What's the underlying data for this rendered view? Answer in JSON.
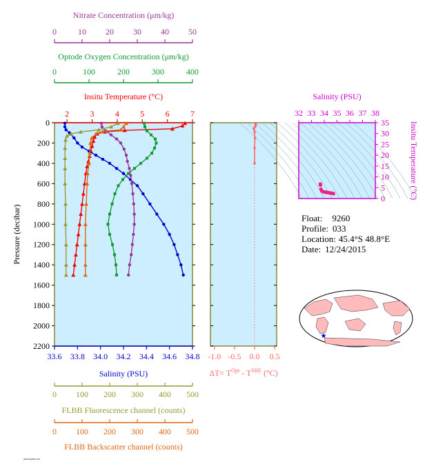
{
  "colors": {
    "nitrate": "#993399",
    "oxygen": "#119933",
    "temperature": "#ee0000",
    "salinity": "#0000cc",
    "fluorescence": "#999933",
    "backscatter": "#dd6611",
    "delta_t": "#ff6666",
    "inset_axis": "#cc00cc",
    "panel_bg": "#cceeff"
  },
  "info": {
    "float_label": "Float:",
    "float_value": "9260",
    "profile_label": "Profile:",
    "profile_value": "033",
    "location_label": "Location:",
    "location_value": "45.4°S  48.8°E",
    "date_label": "Date:",
    "date_value": "12/24/2015"
  },
  "footer_text": "ARGO/9260 033",
  "map": {
    "marker": "star",
    "marker_color": "#0000ff",
    "land_color": "#ffbbbb",
    "ocean_color": "#ffffff"
  },
  "chart_data": [
    {
      "type": "line",
      "y_axis": {
        "label": "Pressure (decibar)",
        "range": [
          0,
          2200
        ],
        "ticks": [
          0,
          200,
          400,
          600,
          800,
          1000,
          1200,
          1400,
          1600,
          1800,
          2000,
          2200
        ],
        "inverted": true
      },
      "axes": {
        "nitrate": {
          "label": "Nitrate Concentration (μm/kg)",
          "range": [
            0,
            50
          ],
          "ticks": [
            0,
            10,
            20,
            30,
            40,
            50
          ]
        },
        "oxygen": {
          "label": "Optode Oxygen Concentration (μm/kg)",
          "range": [
            0,
            400
          ],
          "ticks": [
            0,
            100,
            200,
            300,
            400
          ]
        },
        "temperature": {
          "label": "Insitu Temperature (°C)",
          "range": [
            1.5,
            7
          ],
          "ticks": [
            2,
            3,
            4,
            5,
            6,
            7
          ]
        },
        "salinity": {
          "label": "Salinity (PSU)",
          "range": [
            33.6,
            34.8
          ],
          "ticks": [
            33.6,
            33.8,
            34.0,
            34.2,
            34.4,
            34.6,
            34.8
          ]
        },
        "fluorescence": {
          "label": "FLBB Fluorescence channel (counts)",
          "range": [
            0,
            500
          ],
          "ticks": [
            0,
            100,
            200,
            300,
            400,
            500
          ]
        },
        "backscatter": {
          "label": "FLBB Backscatter channel (counts)",
          "range": [
            0,
            500
          ],
          "ticks": [
            0,
            100,
            200,
            300,
            400,
            500
          ]
        }
      },
      "series": [
        {
          "key": "temperature",
          "marker": "triangle",
          "points": [
            [
              6.7,
              5
            ],
            [
              6.6,
              30
            ],
            [
              6.2,
              60
            ],
            [
              4.3,
              75
            ],
            [
              3.5,
              90
            ],
            [
              3.2,
              110
            ],
            [
              3.1,
              140
            ],
            [
              3.05,
              180
            ],
            [
              3.0,
              230
            ],
            [
              2.95,
              280
            ],
            [
              2.9,
              330
            ],
            [
              2.85,
              380
            ],
            [
              2.8,
              430
            ],
            [
              2.75,
              500
            ],
            [
              2.7,
              600
            ],
            [
              2.65,
              700
            ],
            [
              2.6,
              800
            ],
            [
              2.55,
              900
            ],
            [
              2.5,
              1000
            ],
            [
              2.45,
              1100
            ],
            [
              2.4,
              1200
            ],
            [
              2.35,
              1300
            ],
            [
              2.3,
              1400
            ],
            [
              2.25,
              1500
            ]
          ]
        },
        {
          "key": "salinity",
          "marker": "circle",
          "points": [
            [
              33.69,
              5
            ],
            [
              33.69,
              40
            ],
            [
              33.7,
              70
            ],
            [
              33.73,
              100
            ],
            [
              33.77,
              150
            ],
            [
              33.8,
              200
            ],
            [
              33.84,
              240
            ],
            [
              33.9,
              280
            ],
            [
              33.96,
              320
            ],
            [
              34.02,
              360
            ],
            [
              34.08,
              400
            ],
            [
              34.14,
              450
            ],
            [
              34.2,
              500
            ],
            [
              34.26,
              560
            ],
            [
              34.32,
              620
            ],
            [
              34.37,
              700
            ],
            [
              34.43,
              800
            ],
            [
              34.49,
              900
            ],
            [
              34.55,
              1000
            ],
            [
              34.6,
              1100
            ],
            [
              34.64,
              1200
            ],
            [
              34.67,
              1300
            ],
            [
              34.7,
              1400
            ],
            [
              34.72,
              1500
            ]
          ]
        },
        {
          "key": "oxygen",
          "marker": "square",
          "points": [
            [
              260,
              5
            ],
            [
              262,
              40
            ],
            [
              268,
              80
            ],
            [
              280,
              120
            ],
            [
              292,
              160
            ],
            [
              295,
              200
            ],
            [
              290,
              250
            ],
            [
              282,
              300
            ],
            [
              268,
              350
            ],
            [
              250,
              400
            ],
            [
              232,
              450
            ],
            [
              214,
              500
            ],
            [
              198,
              560
            ],
            [
              185,
              620
            ],
            [
              175,
              700
            ],
            [
              167,
              800
            ],
            [
              160,
              900
            ],
            [
              155,
              1000
            ],
            [
              160,
              1100
            ],
            [
              168,
              1200
            ],
            [
              174,
              1300
            ],
            [
              178,
              1400
            ],
            [
              180,
              1500
            ]
          ]
        },
        {
          "key": "nitrate",
          "marker": "circle",
          "points": [
            [
              17,
              5
            ],
            [
              17.2,
              40
            ],
            [
              18.5,
              80
            ],
            [
              20.5,
              120
            ],
            [
              22.5,
              160
            ],
            [
              24,
              200
            ],
            [
              25.2,
              260
            ],
            [
              26,
              320
            ],
            [
              26.4,
              380
            ],
            [
              27.1,
              450
            ],
            [
              27.6,
              520
            ],
            [
              28,
              600
            ],
            [
              28.4,
              700
            ],
            [
              28.7,
              800
            ],
            [
              28.9,
              900
            ],
            [
              28.9,
              1000
            ],
            [
              28.6,
              1100
            ],
            [
              28.2,
              1200
            ],
            [
              27.8,
              1300
            ],
            [
              27.2,
              1400
            ],
            [
              26.8,
              1500
            ]
          ]
        },
        {
          "key": "fluorescence",
          "marker": "triangle",
          "points": [
            [
              230,
              5
            ],
            [
              205,
              40
            ],
            [
              160,
              70
            ],
            [
              95,
              90
            ],
            [
              60,
              110
            ],
            [
              45,
              130
            ],
            [
              40,
              170
            ],
            [
              38,
              250
            ],
            [
              38,
              350
            ],
            [
              38,
              450
            ],
            [
              38,
              600
            ],
            [
              40,
              800
            ],
            [
              40,
              1000
            ],
            [
              42,
              1200
            ],
            [
              42,
              1400
            ],
            [
              42,
              1500
            ]
          ]
        },
        {
          "key": "backscatter",
          "marker": "triangle",
          "points": [
            [
              260,
              5
            ],
            [
              250,
              40
            ],
            [
              240,
              70
            ],
            [
              175,
              85
            ],
            [
              150,
              110
            ],
            [
              135,
              150
            ],
            [
              130,
              200
            ],
            [
              128,
              300
            ],
            [
              125,
              400
            ],
            [
              120,
              500
            ],
            [
              118,
              600
            ],
            [
              115,
              800
            ],
            [
              112,
              1000
            ],
            [
              112,
              1200
            ],
            [
              112,
              1400
            ],
            [
              112,
              1500
            ]
          ]
        }
      ]
    },
    {
      "type": "line",
      "x_axis": {
        "label": "ΔT= T^Opt - T^SBE (°C)",
        "label_main": "ΔT= T",
        "label_sup1": "Opt",
        "label_mid": " - T",
        "label_sup2": "SBE",
        "label_tail": " (°C)",
        "range": [
          -1.1,
          0.55
        ],
        "ticks": [
          -1.0,
          -0.5,
          0.0,
          0.5
        ],
        "tick_labels": [
          "-1.0",
          "-0.5",
          "0.0",
          "0.5"
        ]
      },
      "y_axis": {
        "range": [
          0,
          2200
        ],
        "inverted": true
      },
      "series": [
        {
          "key": "delta_t",
          "points": [
            [
              0.02,
              5
            ],
            [
              0.03,
              20
            ],
            [
              0.01,
              40
            ],
            [
              -0.02,
              60
            ],
            [
              0.0,
              90
            ],
            [
              0.01,
              150
            ],
            [
              0.0,
              250
            ],
            [
              0.0,
              400
            ]
          ]
        }
      ]
    },
    {
      "type": "scatter",
      "title": "Salinity (PSU)",
      "x_axis": {
        "label": "Salinity (PSU)",
        "range": [
          32,
          38
        ],
        "ticks": [
          32,
          33,
          34,
          35,
          36,
          37,
          38
        ]
      },
      "y_axis": {
        "label": "Insitu Temperature (°C)",
        "range": [
          0,
          35
        ],
        "ticks": [
          0,
          5,
          10,
          15,
          20,
          25,
          30,
          35
        ]
      },
      "background_lines": "density contours",
      "series": [
        {
          "name": "",
          "points": [
            [
              33.69,
              6.7
            ],
            [
              33.7,
              6.2
            ],
            [
              33.75,
              4.3
            ],
            [
              33.8,
              3.5
            ],
            [
              33.9,
              3.2
            ],
            [
              34.0,
              3.05
            ],
            [
              34.1,
              2.95
            ],
            [
              34.2,
              2.85
            ],
            [
              34.3,
              2.75
            ],
            [
              34.4,
              2.65
            ],
            [
              34.5,
              2.55
            ],
            [
              34.6,
              2.45
            ],
            [
              34.7,
              2.35
            ],
            [
              34.72,
              2.25
            ]
          ]
        }
      ]
    }
  ]
}
